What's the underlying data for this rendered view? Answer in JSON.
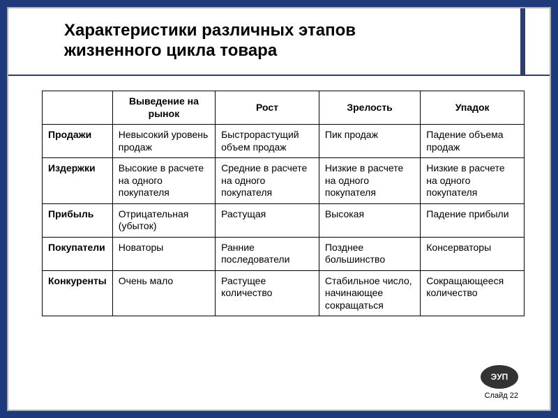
{
  "title_line1": "Характеристики различных этапов",
  "title_line2": "жизненного цикла товара",
  "table": {
    "headers": [
      "",
      "Выведение на рынок",
      "Рост",
      "Зрелость",
      "Упадок"
    ],
    "rows": [
      [
        "Продажи",
        "Невысокий уровень продаж",
        "Быстрорастущий объем продаж",
        "Пик продаж",
        "Падение объема продаж"
      ],
      [
        "Издержки",
        "Высокие в расчете на одного покупателя",
        "Средние в расчете на одного покупателя",
        "Низкие в расчете на одного покупателя",
        "Низкие в расчете на одного покупателя"
      ],
      [
        "Прибыль",
        "Отрицательная (убыток)",
        "Растущая",
        "Высокая",
        "Падение прибыли"
      ],
      [
        "Покупатели",
        "Новаторы",
        "Ранние последователи",
        "Позднее большинство",
        "Консерваторы"
      ],
      [
        "Конкуренты",
        "Очень мало",
        "Растущее количество",
        "Стабильное число, начинающее сокращаться",
        "Сокращающееся количество"
      ]
    ]
  },
  "logo_text": "ЭУП",
  "slide_label": "Слайд 22",
  "colors": {
    "background": "#1e3a7b",
    "accent": "#2d3e6e",
    "border": "#000000"
  }
}
